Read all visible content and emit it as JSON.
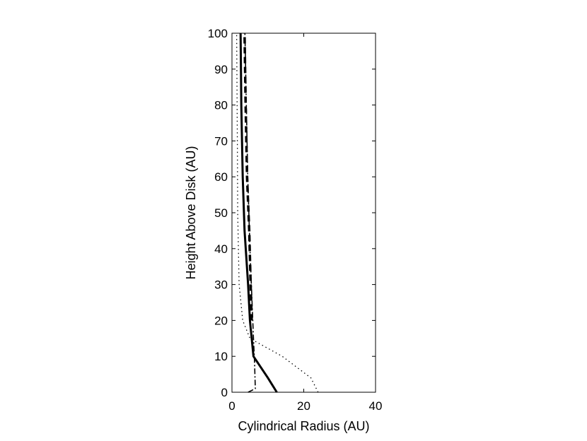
{
  "chart_data": {
    "type": "line",
    "title": "",
    "xlabel": "Cylindrical Radius (AU)",
    "ylabel": "Height Above Disk (AU)",
    "xlim": [
      0,
      40
    ],
    "ylim": [
      0,
      100
    ],
    "xticks": [
      0,
      20,
      40
    ],
    "yticks": [
      0,
      10,
      20,
      30,
      40,
      50,
      60,
      70,
      80,
      90,
      100
    ],
    "xtick_labels": [
      "0",
      "20",
      "40"
    ],
    "ytick_labels": [
      "0",
      "10",
      "20",
      "30",
      "40",
      "50",
      "60",
      "70",
      "80",
      "90",
      "100"
    ],
    "grid": false,
    "legend": "none",
    "series": [
      {
        "style": "solid",
        "color": "#000000",
        "points": [
          [
            12.5,
            0
          ],
          [
            10,
            4
          ],
          [
            6,
            10
          ],
          [
            5.5,
            15
          ],
          [
            5,
            20
          ],
          [
            4.5,
            30
          ],
          [
            3.5,
            45
          ],
          [
            3,
            60
          ],
          [
            2.6,
            80
          ],
          [
            2.4,
            100
          ]
        ]
      },
      {
        "style": "dashed",
        "color": "#000000",
        "points": [
          [
            5.5,
            20
          ],
          [
            5.2,
            30
          ],
          [
            4.8,
            45
          ],
          [
            4.2,
            60
          ],
          [
            3.8,
            80
          ],
          [
            3.5,
            100
          ]
        ]
      },
      {
        "style": "dotted",
        "color": "#000000",
        "points": [
          [
            24,
            0
          ],
          [
            22,
            4
          ],
          [
            14,
            10
          ],
          [
            5,
            15
          ],
          [
            3,
            20
          ],
          [
            2,
            30
          ],
          [
            1.6,
            50
          ],
          [
            1.5,
            70
          ],
          [
            1.3,
            100
          ]
        ]
      },
      {
        "style": "dashdot",
        "color": "#000000",
        "points": [
          [
            4.5,
            0
          ],
          [
            6.5,
            1
          ],
          [
            6.3,
            8
          ],
          [
            6,
            15
          ],
          [
            5.6,
            25
          ],
          [
            5,
            40
          ],
          [
            4.4,
            60
          ],
          [
            4,
            80
          ],
          [
            3.6,
            100
          ]
        ]
      }
    ]
  }
}
